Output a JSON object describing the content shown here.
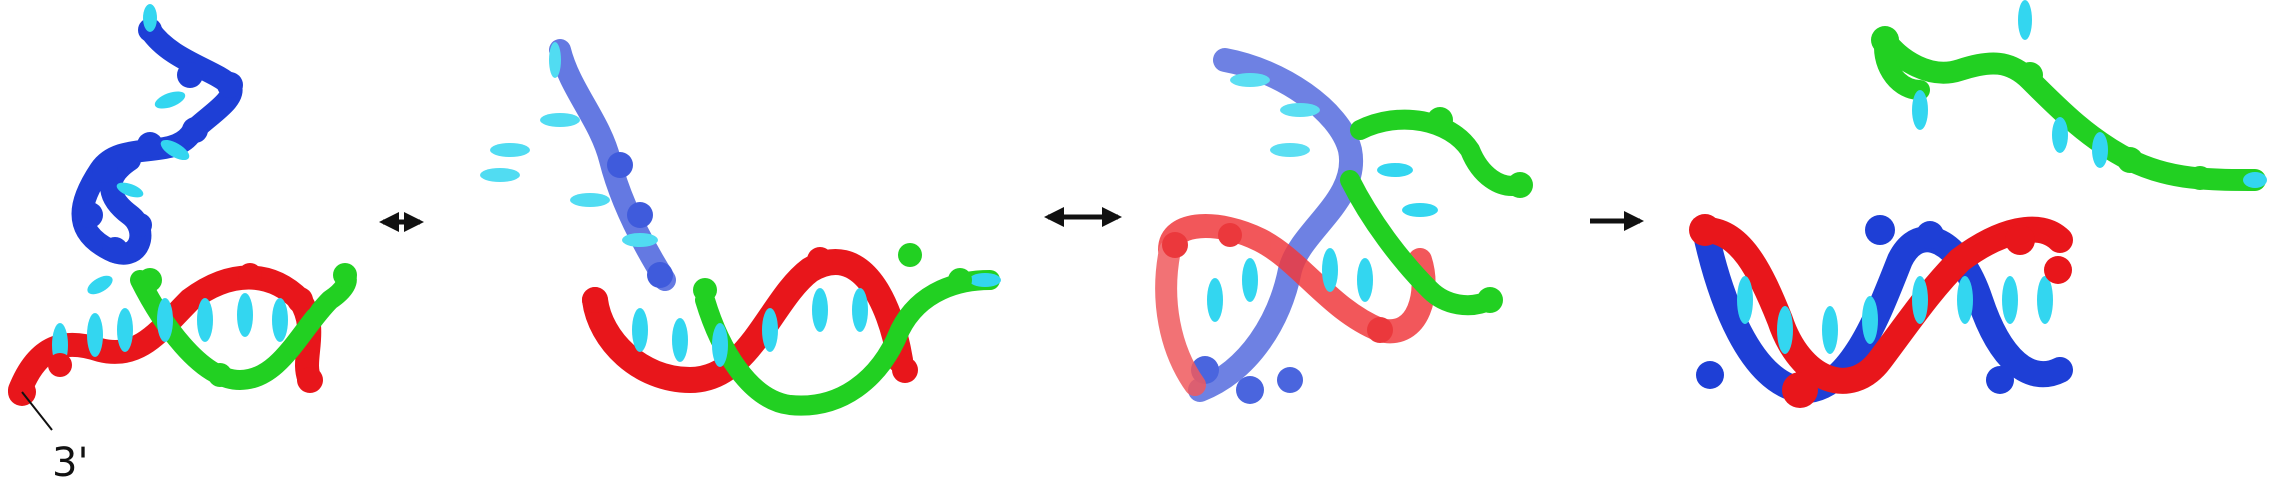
{
  "figure": {
    "end_label": "3'",
    "arrows": [
      "reversible",
      "reversible",
      "forward"
    ],
    "colors": {
      "strand_blue": "#1e3fd6",
      "strand_red": "#e8161b",
      "strand_green": "#22d022",
      "base_cyan": "#33d6f0",
      "arrow": "#111111",
      "background": "#ffffff"
    },
    "panels": [
      {
        "name": "state-1",
        "description_id": "invading-strand-detached"
      },
      {
        "name": "state-2",
        "description_id": "toehold-bound"
      },
      {
        "name": "state-3",
        "description_id": "branch-migration"
      },
      {
        "name": "state-4",
        "description_id": "displaced-strand-released"
      }
    ]
  }
}
